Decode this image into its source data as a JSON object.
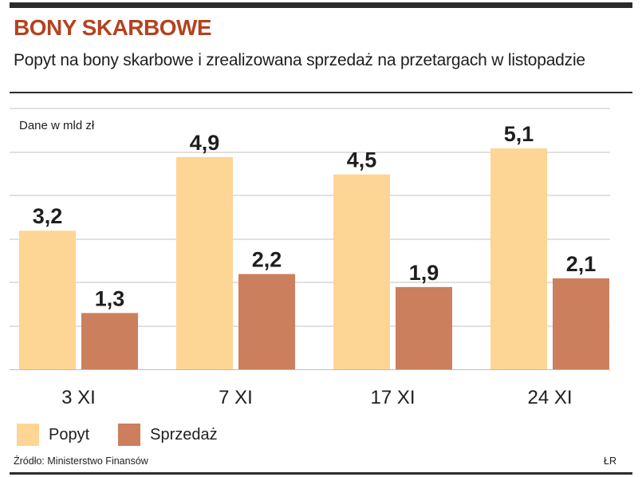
{
  "header": {
    "title": "BONY SKARBOWE",
    "subtitle": "Popyt na bony skarbowe i zrealizowana sprzedaż na przetargach w listopadzie"
  },
  "colors": {
    "title": "#b2431f",
    "popyt": "#fdd594",
    "sprzedaz": "#cc7f5d",
    "grid": "#cfcfcf",
    "rule": "#2b2b2b"
  },
  "footer": {
    "source": "Źródło: Ministerstwo Finansów",
    "credit": "ŁR"
  },
  "chart_data": {
    "type": "bar",
    "unit_label": "Dane w mld zł",
    "categories": [
      "3 XI",
      "7 XI",
      "17 XI",
      "24 XI"
    ],
    "series": [
      {
        "name": "Popyt",
        "values": [
          3.2,
          4.9,
          4.5,
          5.1
        ],
        "labels": [
          "3,2",
          "4,9",
          "4,5",
          "5,1"
        ],
        "color": "#fdd594"
      },
      {
        "name": "Sprzedaż",
        "values": [
          1.3,
          2.2,
          1.9,
          2.1
        ],
        "labels": [
          "1,3",
          "2,2",
          "1,9",
          "2,1"
        ],
        "color": "#cc7f5d"
      }
    ],
    "ylim": [
      0,
      5.5
    ],
    "grid": true,
    "legend": "bottom-left",
    "xlabel": "",
    "ylabel": ""
  }
}
